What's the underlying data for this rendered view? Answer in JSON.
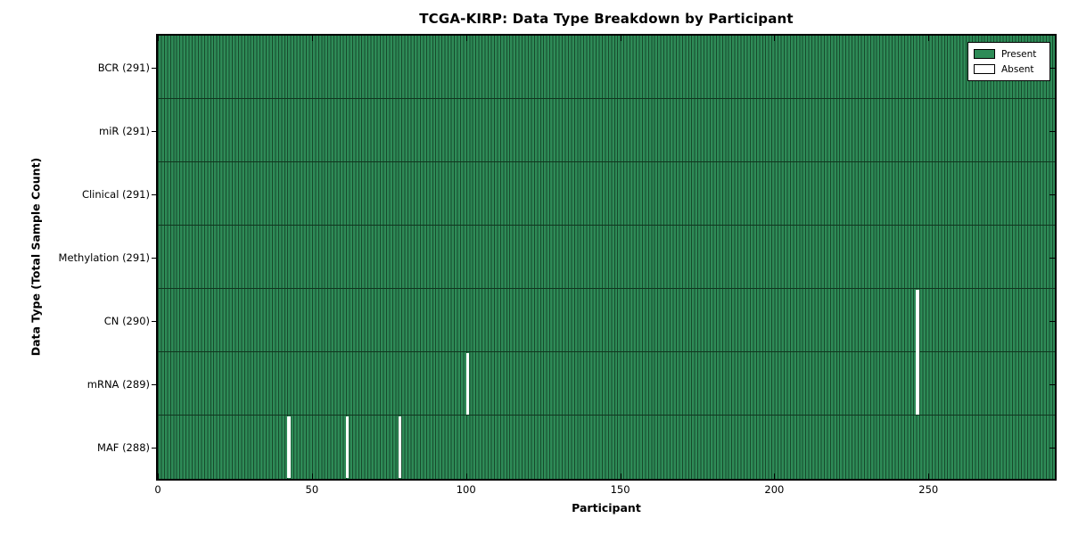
{
  "figure": {
    "title": "TCGA-KIRP: Data Type Breakdown by Participant",
    "xlabel": "Participant",
    "ylabel": "Data Type (Total Sample Count)",
    "legend": {
      "present_label": "Present",
      "absent_label": "Absent"
    },
    "colors": {
      "present": "#2e8b57",
      "absent": "#ffffff",
      "bar_edge": "#174a2c",
      "spine": "#000000"
    }
  },
  "chart_data": {
    "type": "heatmap",
    "title": "TCGA-KIRP: Data Type Breakdown by Participant",
    "xlabel": "Participant",
    "ylabel": "Data Type (Total Sample Count)",
    "legend_entries": [
      "Present",
      "Absent"
    ],
    "legend_position": "upper right",
    "grid": false,
    "total_participants": 291,
    "x_range": [
      0,
      291
    ],
    "x_ticks": [
      0,
      50,
      100,
      150,
      200,
      250
    ],
    "categories": [
      "BCR (291)",
      "miR (291)",
      "Clinical (291)",
      "Methylation (291)",
      "CN (290)",
      "mRNA (289)",
      "MAF (288)"
    ],
    "rows": [
      {
        "label": "BCR (291)",
        "data_type": "BCR",
        "present_count": 291,
        "absent_participants": []
      },
      {
        "label": "miR (291)",
        "data_type": "miR",
        "present_count": 291,
        "absent_participants": []
      },
      {
        "label": "Clinical (291)",
        "data_type": "Clinical",
        "present_count": 291,
        "absent_participants": []
      },
      {
        "label": "Methylation (291)",
        "data_type": "Methylation",
        "present_count": 291,
        "absent_participants": []
      },
      {
        "label": "CN (290)",
        "data_type": "CN",
        "present_count": 290,
        "absent_participants": [
          246
        ]
      },
      {
        "label": "mRNA (289)",
        "data_type": "mRNA",
        "present_count": 289,
        "absent_participants": [
          100,
          246
        ]
      },
      {
        "label": "MAF (288)",
        "data_type": "MAF",
        "present_count": 288,
        "absent_participants": [
          42,
          61,
          78
        ]
      }
    ]
  }
}
